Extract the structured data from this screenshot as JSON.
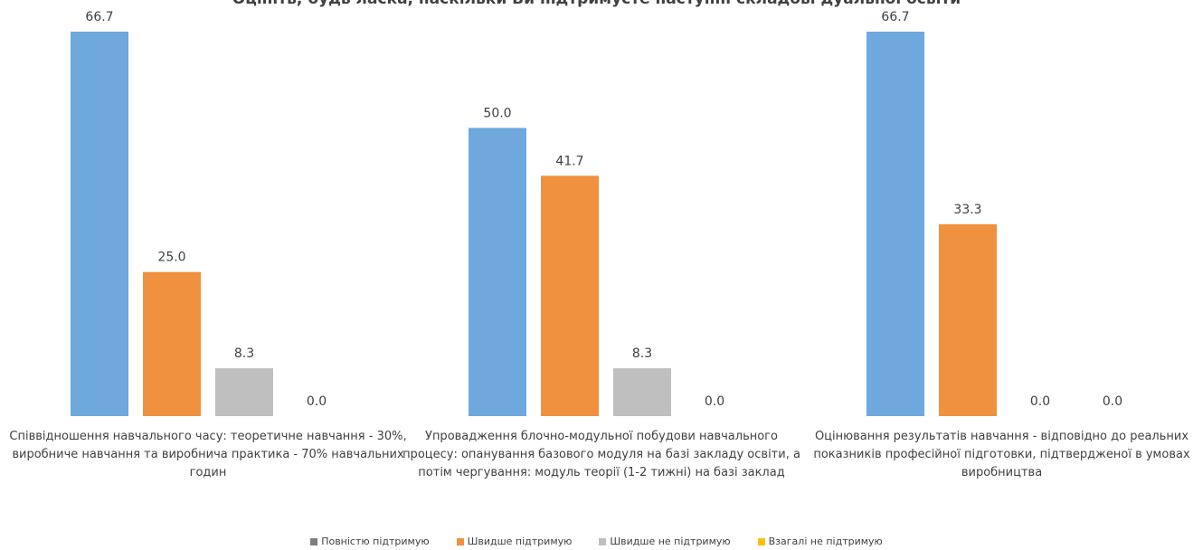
{
  "chart_data": {
    "type": "bar",
    "title": "Оцініть, будь ласка, наскільки Ви підтримуєте наступні складові дуальної освіти",
    "categories": [
      "Співвідношення навчального часу: теоретичне навчання - 30%, виробниче навчання та виробнича практика - 70% навчальних годин",
      "Упровадження блочно-модульної побудови навчального процесу: опанування базового модуля на базі закладу освіти, а потім чергування: модуль теорії (1-2 тижні) на базі заклад",
      "Оцінювання результатів навчання - відповідно до реальних показників професійної підготовки, підтвердженої в умовах виробництва"
    ],
    "series": [
      {
        "name": "Повністю підтримую",
        "color": "#6FA8DC",
        "legend_color": "#7f7f7f",
        "values": [
          66.7,
          50.0,
          66.7
        ]
      },
      {
        "name": "Швидше підтримую",
        "color": "#F0913F",
        "legend_color": "#F0913F",
        "values": [
          25.0,
          41.7,
          33.3
        ]
      },
      {
        "name": "Швидше не підтримую",
        "color": "#BFBFBF",
        "legend_color": "#BFBFBF",
        "values": [
          8.3,
          8.3,
          0.0
        ]
      },
      {
        "name": "Взагалі не підтримую",
        "color": "#FFC000",
        "legend_color": "#FFC000",
        "values": [
          0.0,
          0.0,
          0.0
        ]
      }
    ],
    "ylim": [
      0,
      70
    ],
    "legend_position": "bottom",
    "grid": false,
    "value_precision": 1
  }
}
